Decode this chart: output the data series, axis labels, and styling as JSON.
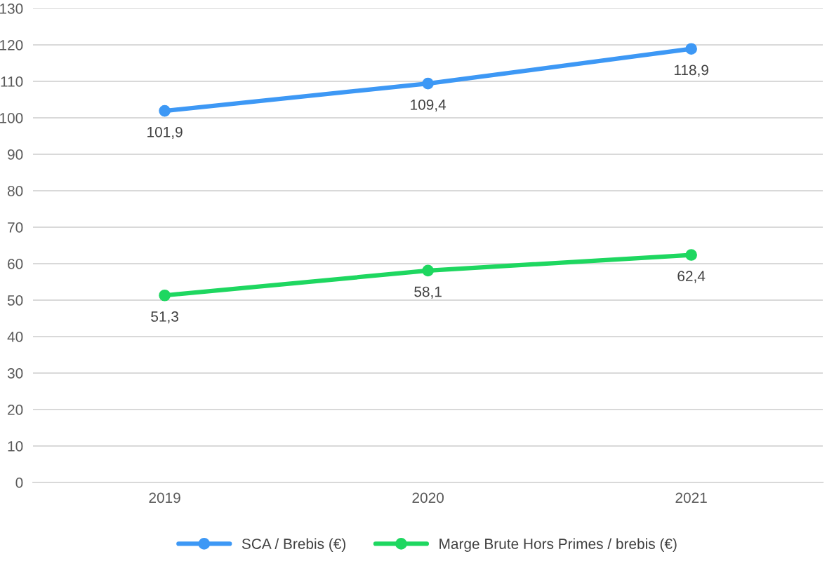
{
  "chart_data": {
    "type": "line",
    "categories": [
      "2019",
      "2020",
      "2021"
    ],
    "series": [
      {
        "name": "SCA / Brebis (€)",
        "color": "#3d98f5",
        "values": [
          101.9,
          109.4,
          118.9
        ],
        "value_labels": [
          "101,9",
          "109,4",
          "118,9"
        ]
      },
      {
        "name": "Marge Brute Hors Primes / brebis (€)",
        "color": "#1ed760",
        "values": [
          51.3,
          58.1,
          62.4
        ],
        "value_labels": [
          "51,3",
          "58,1",
          "62,4"
        ]
      }
    ],
    "ylim": [
      0,
      130
    ],
    "yticks": [
      0,
      10,
      20,
      30,
      40,
      50,
      60,
      70,
      80,
      90,
      100,
      110,
      120,
      130
    ],
    "grid": "y",
    "legend": "bottom",
    "marker": "circle",
    "line_style": "solid"
  }
}
